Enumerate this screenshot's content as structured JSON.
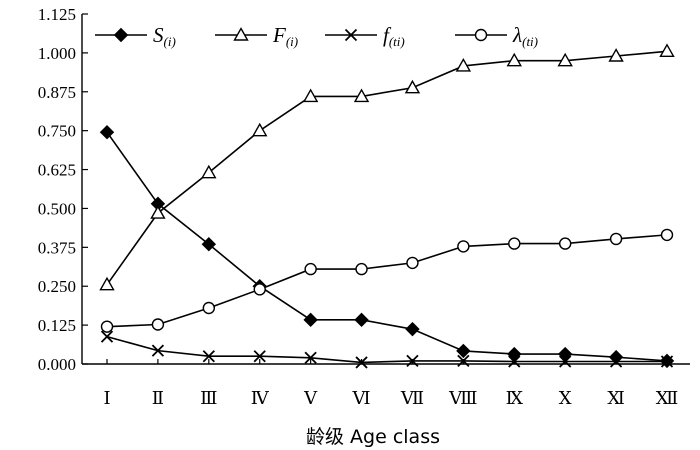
{
  "chart_data": {
    "type": "line",
    "xlabel": "龄级  Age class",
    "ylabel": "",
    "ylim": [
      0,
      1.125
    ],
    "yticks": [
      "0.000",
      "0.125",
      "0.250",
      "0.375",
      "0.500",
      "0.625",
      "0.750",
      "0.875",
      "1.000",
      "1.125"
    ],
    "categories": [
      "Ⅰ",
      "Ⅱ",
      "Ⅲ",
      "Ⅳ",
      "Ⅴ",
      "Ⅵ",
      "Ⅶ",
      "Ⅷ",
      "Ⅸ",
      "Ⅹ",
      "Ⅺ",
      "Ⅻ"
    ],
    "grid": false,
    "legend_position": "top",
    "series": [
      {
        "name": "S",
        "subscript": "(i)",
        "marker": "diamond",
        "values": [
          0.745,
          0.515,
          0.385,
          0.25,
          0.142,
          0.142,
          0.112,
          0.042,
          0.032,
          0.032,
          0.022,
          0.01
        ]
      },
      {
        "name": "F",
        "subscript": "(i)",
        "marker": "triangle",
        "values": [
          0.255,
          0.485,
          0.615,
          0.75,
          0.86,
          0.86,
          0.888,
          0.958,
          0.975,
          0.975,
          0.99,
          1.005
        ]
      },
      {
        "name": "f",
        "subscript": "(ti)",
        "marker": "cross",
        "values": [
          0.088,
          0.043,
          0.025,
          0.025,
          0.02,
          0.005,
          0.01,
          0.01,
          0.008,
          0.008,
          0.008,
          0.008
        ]
      },
      {
        "name": "λ",
        "subscript": "(ti)",
        "marker": "circle",
        "values": [
          0.12,
          0.127,
          0.18,
          0.24,
          0.305,
          0.305,
          0.325,
          0.378,
          0.387,
          0.387,
          0.402,
          0.415
        ]
      }
    ]
  }
}
